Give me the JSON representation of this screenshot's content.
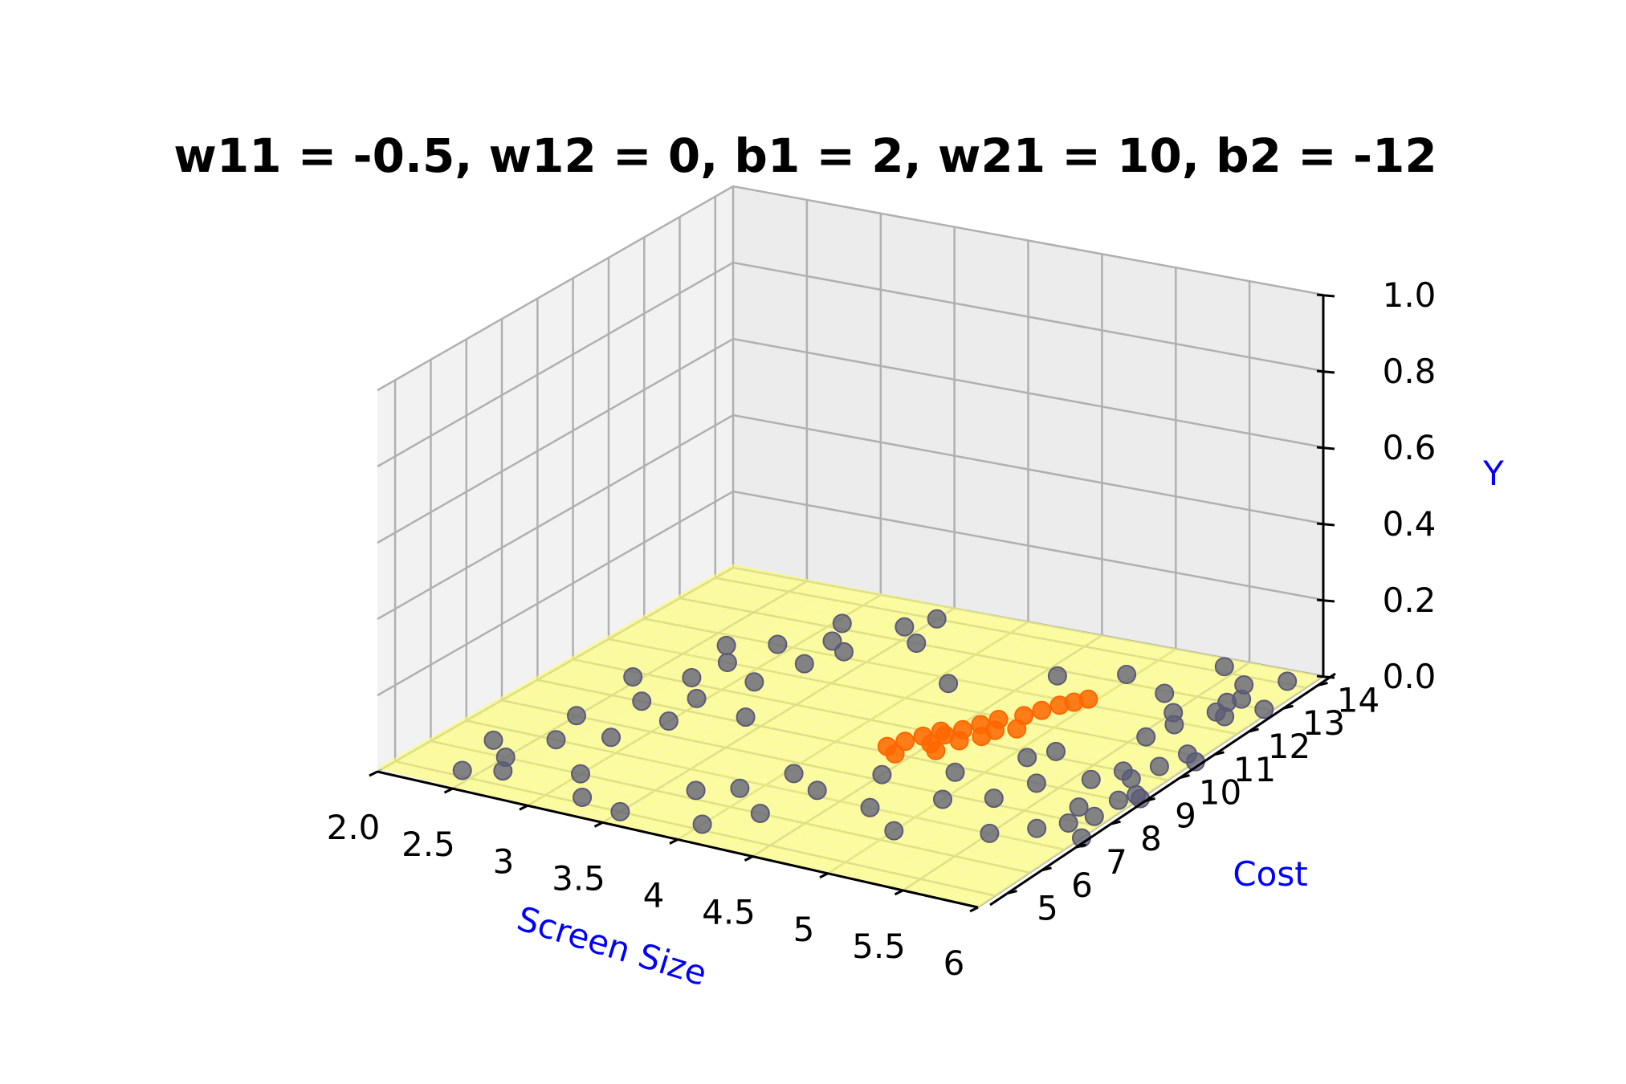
{
  "chart_data": {
    "type": "scatter",
    "title": "w11 = -0.5, w12 = 0, b1 = 2, w21 = 10, b2 = -12",
    "xlabel": "Screen Size",
    "ylabel": "Cost",
    "zlabel": "Y",
    "xlim": [
      2,
      6
    ],
    "ylim": [
      4.5,
      14.5
    ],
    "zlim": [
      0,
      1
    ],
    "x_ticks": [
      "2.0",
      "2.5",
      "3",
      "3.5",
      "4",
      "4.5",
      "5",
      "5.5",
      "6"
    ],
    "y_ticks": [
      "5",
      "6",
      "7",
      "8",
      "9",
      "10",
      "11",
      "12",
      "13",
      "14"
    ],
    "z_ticks": [
      "0.0",
      "0.2",
      "0.4",
      "0.6",
      "0.8",
      "1.0"
    ],
    "grid": true,
    "label_color": "#0000ff",
    "surface": {
      "description_formula": "sigmoid(w21 * sigmoid(w11 * x + w12 * y + b1) + b2)",
      "w11": -0.5,
      "w12": 0,
      "b1": 2,
      "w21": 10,
      "b2": -12,
      "color": "#ffff66",
      "opacity": 0.6
    },
    "series": [
      {
        "color": "#ff6600",
        "points": [
          [
            4.3,
            9.2
          ],
          [
            4.35,
            9.5
          ],
          [
            4.4,
            9.8
          ],
          [
            4.45,
            10.1
          ],
          [
            4.5,
            9.6
          ],
          [
            4.55,
            10.3
          ],
          [
            4.6,
            10.6
          ],
          [
            4.62,
            9.9
          ],
          [
            4.65,
            10.9
          ],
          [
            4.7,
            10.2
          ],
          [
            4.75,
            11.2
          ],
          [
            4.8,
            11.5
          ],
          [
            4.82,
            10.7
          ],
          [
            4.85,
            11.8
          ],
          [
            4.4,
            9.0
          ],
          [
            4.9,
            12.0
          ],
          [
            4.95,
            12.2
          ],
          [
            4.5,
            10.0
          ],
          [
            4.72,
            10.5
          ],
          [
            4.58,
            9.4
          ]
        ]
      },
      {
        "color": "#5a5a78",
        "points": [
          [
            2.4,
            5.2
          ],
          [
            2.5,
            6.0
          ],
          [
            2.6,
            7.0
          ],
          [
            2.5,
            8.0
          ],
          [
            2.7,
            9.0
          ],
          [
            2.75,
            10.2
          ],
          [
            2.8,
            11.0
          ],
          [
            2.9,
            12.0
          ],
          [
            2.95,
            9.5
          ],
          [
            2.6,
            5.5
          ],
          [
            3.0,
            8.5
          ],
          [
            3.1,
            10.5
          ],
          [
            2.85,
            7.5
          ],
          [
            3.2,
            11.5
          ],
          [
            3.15,
            12.5
          ],
          [
            3.05,
            13.2
          ],
          [
            3.3,
            12.2
          ],
          [
            3.4,
            13.5
          ],
          [
            3.5,
            14.0
          ],
          [
            3.6,
            13.0
          ],
          [
            3.0,
            6.0
          ],
          [
            3.2,
            5.2
          ],
          [
            3.5,
            5.0
          ],
          [
            3.7,
            6.3
          ],
          [
            3.9,
            6.7
          ],
          [
            4.0,
            5.2
          ],
          [
            4.05,
            7.6
          ],
          [
            4.2,
            6.0
          ],
          [
            4.3,
            7.2
          ],
          [
            4.5,
            8.2
          ],
          [
            4.7,
            7.0
          ],
          [
            4.85,
            8.8
          ],
          [
            5.0,
            6.4
          ],
          [
            5.0,
            7.8
          ],
          [
            5.1,
            9.8
          ],
          [
            5.2,
            10.2
          ],
          [
            5.25,
            8.2
          ],
          [
            5.35,
            9.0
          ],
          [
            5.5,
            7.0
          ],
          [
            5.5,
            12.3
          ],
          [
            5.55,
            11.3
          ],
          [
            5.6,
            11.9
          ],
          [
            5.65,
            13.7
          ],
          [
            5.7,
            13.0
          ],
          [
            5.72,
            12.6
          ],
          [
            5.75,
            13.2
          ],
          [
            5.8,
            12.5
          ],
          [
            5.85,
            14.1
          ],
          [
            5.9,
            11.0
          ],
          [
            5.95,
            13.0
          ],
          [
            5.6,
            9.5
          ],
          [
            5.7,
            10.0
          ],
          [
            5.75,
            8.5
          ],
          [
            5.8,
            9.8
          ],
          [
            5.9,
            9.0
          ],
          [
            5.85,
            10.4
          ],
          [
            5.95,
            9.3
          ],
          [
            6.0,
            10.8
          ],
          [
            6.0,
            9.2
          ],
          [
            5.7,
            7.5
          ],
          [
            5.82,
            7.9
          ],
          [
            5.9,
            8.3
          ],
          [
            6.0,
            7.5
          ],
          [
            2.3,
            6.5
          ],
          [
            2.45,
            9.8
          ],
          [
            2.65,
            11.6
          ],
          [
            3.35,
            9.2
          ],
          [
            4.1,
            11.8
          ],
          [
            4.6,
            12.8
          ],
          [
            4.95,
            13.3
          ],
          [
            5.3,
            12.9
          ],
          [
            5.4,
            14.2
          ]
        ]
      }
    ]
  }
}
